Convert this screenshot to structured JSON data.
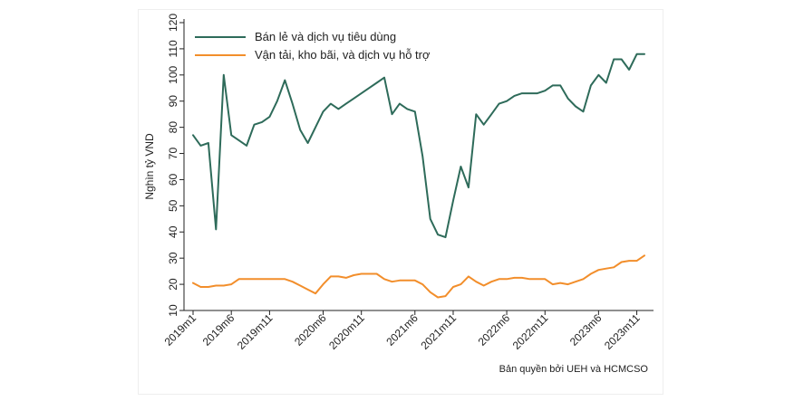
{
  "chart_data": {
    "type": "line",
    "ylabel": "Nghìn tỷ VND",
    "ylim": [
      10,
      120
    ],
    "yticks": [
      10,
      20,
      30,
      40,
      50,
      60,
      70,
      80,
      90,
      100,
      110,
      120
    ],
    "xtick_labels": [
      "2019m1",
      "2019m6",
      "2019m11",
      "2020m6",
      "2020m11",
      "2021m6",
      "2021m11",
      "2022m6",
      "2022m11",
      "2023m6",
      "2023m11"
    ],
    "x": [
      "2019m1",
      "2019m2",
      "2019m3",
      "2019m4",
      "2019m5",
      "2019m6",
      "2019m7",
      "2019m8",
      "2019m9",
      "2019m10",
      "2019m11",
      "2019m12",
      "2020m1",
      "2020m2",
      "2020m3",
      "2020m4",
      "2020m5",
      "2020m6",
      "2020m7",
      "2020m8",
      "2020m9",
      "2020m10",
      "2020m11",
      "2020m12",
      "2021m1",
      "2021m2",
      "2021m3",
      "2021m4",
      "2021m5",
      "2021m6",
      "2021m7",
      "2021m8",
      "2021m9",
      "2021m10",
      "2021m11",
      "2021m12",
      "2022m1",
      "2022m2",
      "2022m3",
      "2022m4",
      "2022m5",
      "2022m6",
      "2022m7",
      "2022m8",
      "2022m9",
      "2022m10",
      "2022m11",
      "2022m12",
      "2023m1",
      "2023m2",
      "2023m3",
      "2023m4",
      "2023m5",
      "2023m6",
      "2023m7",
      "2023m8",
      "2023m9",
      "2023m10",
      "2023m11",
      "2023m12"
    ],
    "series": [
      {
        "name": "Bán lẻ và dịch vụ tiêu dùng",
        "color": "#2e6b5a",
        "values": [
          77,
          73,
          74,
          41,
          100,
          77,
          75,
          73,
          81,
          82,
          84,
          90,
          98,
          89,
          79,
          74,
          80,
          86,
          89,
          87,
          89,
          91,
          93,
          95,
          97,
          99,
          85,
          89,
          87,
          86,
          69,
          45,
          39,
          38,
          52,
          65,
          57,
          85,
          81,
          85,
          89,
          90,
          92,
          93,
          93,
          93,
          94,
          96,
          96,
          91,
          88,
          86,
          96,
          100,
          97,
          106,
          106,
          102,
          108,
          108
        ]
      },
      {
        "name": "Vận tải, kho bãi, và dịch vụ hỗ trợ",
        "color": "#f28e2b",
        "values": [
          20.5,
          19,
          19,
          19.5,
          19.5,
          20,
          22,
          22,
          22,
          22,
          22,
          22,
          22,
          21,
          19.5,
          18,
          16.5,
          20,
          23,
          23,
          22.5,
          23.5,
          24,
          24,
          24,
          22,
          21,
          21.5,
          21.5,
          21.5,
          20,
          17,
          15,
          15.5,
          19,
          20,
          23,
          21,
          19.5,
          21,
          22,
          22,
          22.5,
          22.5,
          22,
          22,
          22,
          20,
          20.5,
          20,
          21,
          22,
          24,
          25.5,
          26,
          26.5,
          28.5,
          29,
          29,
          31
        ]
      }
    ]
  },
  "footer": {
    "credit": "Bản quyền bởi UEH và HCMCSO"
  }
}
